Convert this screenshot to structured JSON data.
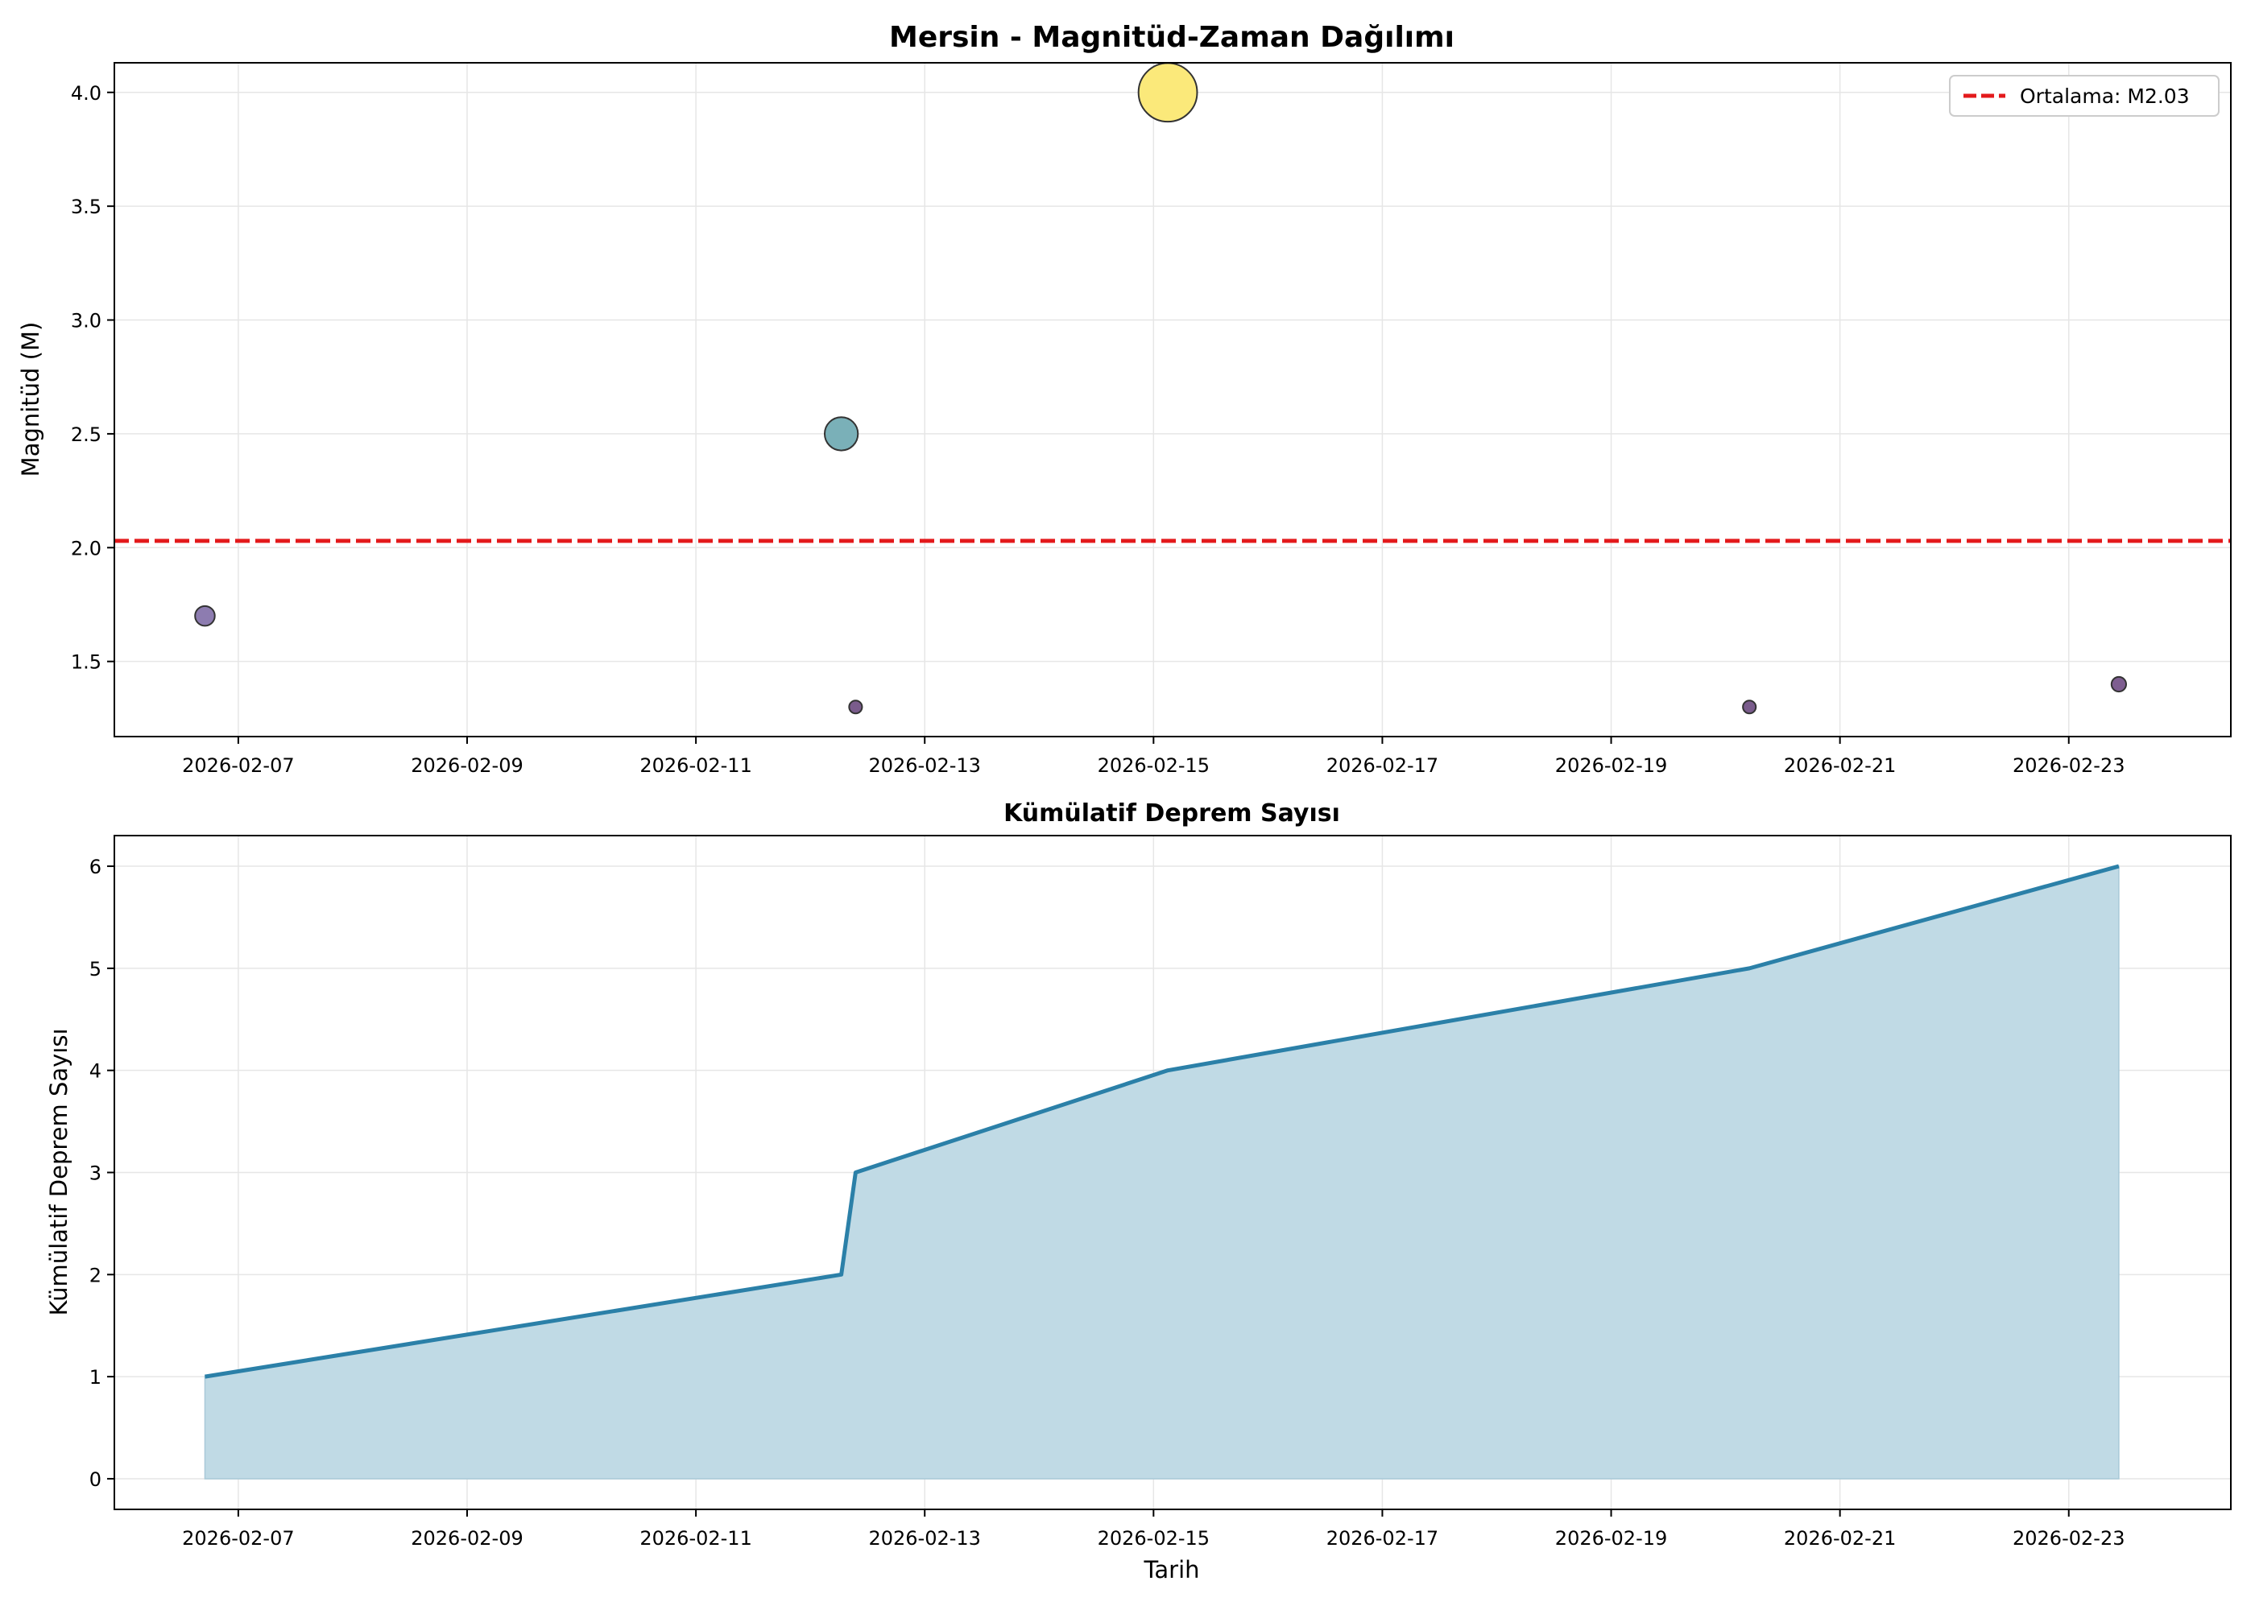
{
  "chart_data": [
    {
      "type": "scatter",
      "title": "Mersin - Magnitüd-Zaman Dağılımı",
      "xlabel": "",
      "ylabel": "Magnitüd (M)",
      "x_tick_labels": [
        "2026-02-07",
        "2026-02-09",
        "2026-02-11",
        "2026-02-13",
        "2026-02-15",
        "2026-02-17",
        "2026-02-19",
        "2026-02-21",
        "2026-02-23"
      ],
      "y_ticks": [
        1.5,
        2.0,
        2.5,
        3.0,
        3.5,
        4.0
      ],
      "y_tick_labels": [
        "1.5",
        "2.0",
        "2.5",
        "3.0",
        "3.5",
        "4.0"
      ],
      "xlim": [
        "2026-02-05T22:00",
        "2026-02-24T10:00"
      ],
      "ylim": [
        1.17,
        4.13
      ],
      "grid": true,
      "legend_position": "top-right",
      "points": [
        {
          "x": "2026-02-06T17:00",
          "y": 1.7,
          "color": "#8d7cb0"
        },
        {
          "x": "2026-02-12T06:30",
          "y": 2.5,
          "color": "#7ab0b8"
        },
        {
          "x": "2026-02-12T09:30",
          "y": 1.3,
          "color": "#7a5c8c"
        },
        {
          "x": "2026-02-15T03:00",
          "y": 4.0,
          "color": "#fbe97a"
        },
        {
          "x": "2026-02-20T05:00",
          "y": 1.3,
          "color": "#7a5c8c"
        },
        {
          "x": "2026-02-23T10:30",
          "y": 1.4,
          "color": "#7e5e90"
        }
      ],
      "mean_line": {
        "value": 2.03,
        "label": "Ortalama: M2.03",
        "color": "#e31a1c"
      }
    },
    {
      "type": "area",
      "title": "Kümülatif Deprem Sayısı",
      "xlabel": "Tarih",
      "ylabel": "Kümülatif Deprem Sayısı",
      "x_tick_labels": [
        "2026-02-07",
        "2026-02-09",
        "2026-02-11",
        "2026-02-13",
        "2026-02-15",
        "2026-02-17",
        "2026-02-19",
        "2026-02-21",
        "2026-02-23"
      ],
      "y_ticks": [
        0,
        1,
        2,
        3,
        4,
        5,
        6
      ],
      "y_tick_labels": [
        "0",
        "1",
        "2",
        "3",
        "4",
        "5",
        "6"
      ],
      "xlim": [
        "2026-02-05T22:00",
        "2026-02-24T10:00"
      ],
      "ylim": [
        -0.3,
        6.3
      ],
      "grid": true,
      "x": [
        "2026-02-06T17:00",
        "2026-02-12T06:30",
        "2026-02-12T09:30",
        "2026-02-15T03:00",
        "2026-02-20T05:00",
        "2026-02-23T10:30"
      ],
      "y": [
        1,
        2,
        3,
        4,
        5,
        6
      ],
      "line_color": "#2b80a8",
      "fill_color": "#c0dae5"
    }
  ]
}
